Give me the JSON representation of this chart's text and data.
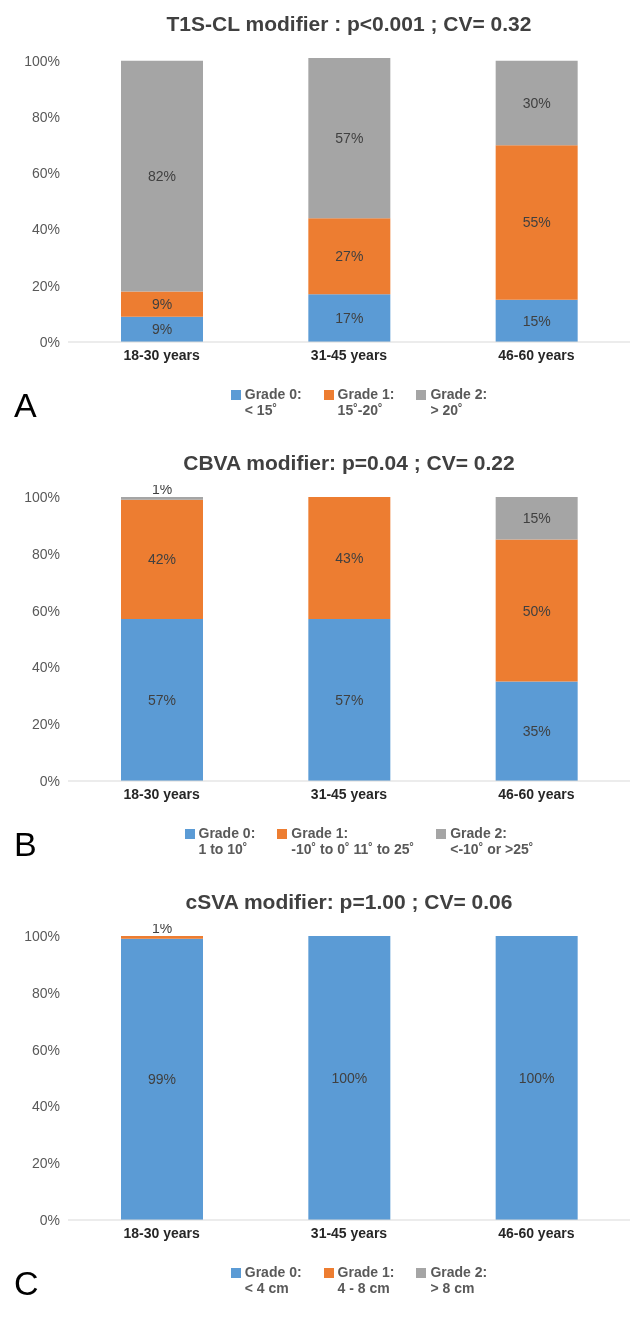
{
  "chart_data": [
    {
      "type": "bar",
      "title": "T1S-CL modifier : p<0.001 ; CV= 0.32",
      "categories": [
        "18-30 years",
        "31-45 years",
        "46-60 years"
      ],
      "stacked": true,
      "legend": "bottom",
      "ylim": [
        0,
        101
      ],
      "yticks": [
        {
          "value": 0,
          "label": "0%"
        },
        {
          "value": 20,
          "label": "20%"
        },
        {
          "value": 40,
          "label": "40%"
        },
        {
          "value": 60,
          "label": "60%"
        },
        {
          "value": 80,
          "label": "80%"
        },
        {
          "value": 100,
          "label": "100%"
        }
      ],
      "annotations": [
        "A"
      ],
      "series": [
        {
          "name": "Grade 0:\n< 15˚",
          "color": "#5b9bd5",
          "values": [
            9,
            17,
            15
          ],
          "value_labels": [
            "9%",
            "17%",
            "15%"
          ]
        },
        {
          "name": "Grade 1:\n15˚-20˚",
          "color": "#ed7d31",
          "values": [
            9,
            27,
            55
          ],
          "value_labels": [
            "9%",
            "27%",
            "55%"
          ]
        },
        {
          "name": "Grade 2:\n> 20˚",
          "color": "#a5a5a5",
          "values": [
            82,
            57,
            30
          ],
          "value_labels": [
            "82%",
            "57%",
            "30%"
          ]
        }
      ]
    },
    {
      "type": "bar",
      "title": "CBVA modifier: p=0.04 ; CV= 0.22",
      "categories": [
        "18-30 years",
        "31-45 years",
        "46-60 years"
      ],
      "stacked": true,
      "legend": "bottom",
      "ylim": [
        0,
        100
      ],
      "yticks": [
        {
          "value": 0,
          "label": "0%"
        },
        {
          "value": 20,
          "label": "20%"
        },
        {
          "value": 40,
          "label": "40%"
        },
        {
          "value": 60,
          "label": "60%"
        },
        {
          "value": 80,
          "label": "80%"
        },
        {
          "value": 100,
          "label": "100%"
        }
      ],
      "annotations": [
        "B"
      ],
      "series": [
        {
          "name": "Grade 0:\n1 to 10˚",
          "color": "#5b9bd5",
          "values": [
            57,
            57,
            35
          ],
          "value_labels": [
            "57%",
            "57%",
            "35%"
          ]
        },
        {
          "name": "Grade 1:\n-10˚ to 0˚ 11˚ to 25˚",
          "color": "#ed7d31",
          "values": [
            42,
            43,
            50
          ],
          "value_labels": [
            "42%",
            "43%",
            "50%"
          ]
        },
        {
          "name": "Grade 2:\n<-10˚ or >25˚",
          "color": "#a5a5a5",
          "values": [
            1,
            0,
            15
          ],
          "value_labels": [
            "1%",
            null,
            "15%"
          ]
        }
      ]
    },
    {
      "type": "bar",
      "title": "cSVA modifier: p=1.00 ; CV= 0.06",
      "categories": [
        "18-30 years",
        "31-45 years",
        "46-60 years"
      ],
      "stacked": true,
      "legend": "bottom",
      "ylim": [
        0,
        100
      ],
      "yticks": [
        {
          "value": 0,
          "label": "0%"
        },
        {
          "value": 20,
          "label": "20%"
        },
        {
          "value": 40,
          "label": "40%"
        },
        {
          "value": 60,
          "label": "60%"
        },
        {
          "value": 80,
          "label": "80%"
        },
        {
          "value": 100,
          "label": "100%"
        }
      ],
      "annotations": [
        "C"
      ],
      "series": [
        {
          "name": "Grade 0:\n< 4 cm",
          "color": "#5b9bd5",
          "values": [
            99,
            100,
            100
          ],
          "value_labels": [
            "99%",
            "100%",
            "100%"
          ]
        },
        {
          "name": "Grade 1:\n4 - 8 cm",
          "color": "#ed7d31",
          "values": [
            1,
            0,
            0
          ],
          "value_labels": [
            "1%",
            null,
            null
          ]
        },
        {
          "name": "Grade 2:\n> 8 cm",
          "color": "#a5a5a5",
          "values": [
            0,
            0,
            0
          ],
          "value_labels": [
            null,
            null,
            null
          ]
        }
      ]
    }
  ]
}
